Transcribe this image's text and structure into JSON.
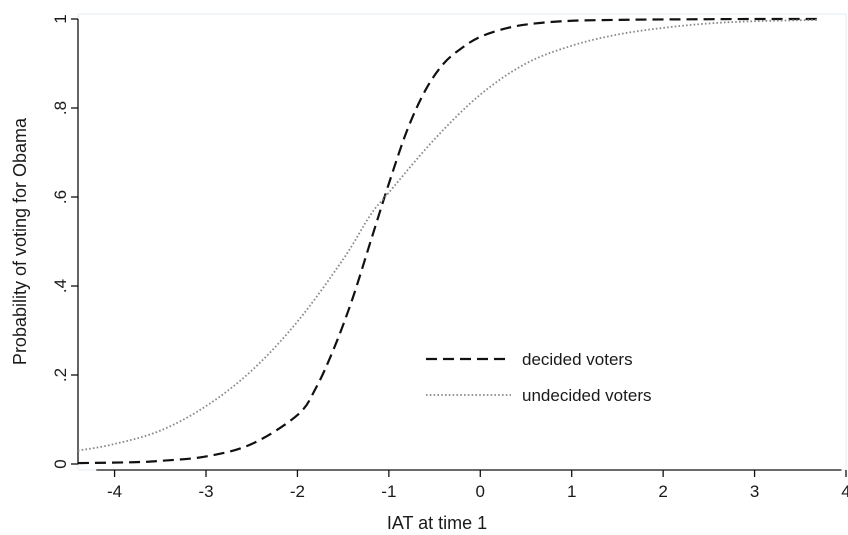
{
  "chart_data": {
    "type": "line",
    "title": "",
    "xlabel": "IAT at time 1",
    "ylabel": "Probability of voting for Obama",
    "xlim": [
      -4.4,
      4.0
    ],
    "ylim": [
      0,
      1
    ],
    "x_ticks": [
      -4,
      -3,
      -2,
      -1,
      0,
      1,
      2,
      3,
      4
    ],
    "x_tick_labels": [
      "-4",
      "-3",
      "-2",
      "-1",
      "0",
      "1",
      "2",
      "3",
      "4"
    ],
    "y_ticks": [
      0,
      0.2,
      0.4,
      0.6,
      0.8,
      1
    ],
    "y_tick_labels": [
      "0",
      ".2",
      ".4",
      ".6",
      ".8",
      "1"
    ],
    "grid": false,
    "legend_position": "lower-right",
    "series": [
      {
        "name": "decided voters",
        "style": "dashed",
        "color": "#111111",
        "points": [
          [
            -4.4,
            0.002
          ],
          [
            -3.8,
            0.004
          ],
          [
            -3.5,
            0.007
          ],
          [
            -3.0,
            0.017
          ],
          [
            -2.5,
            0.045
          ],
          [
            -2.0,
            0.11
          ],
          [
            -1.8,
            0.17
          ],
          [
            -1.6,
            0.26
          ],
          [
            -1.4,
            0.37
          ],
          [
            -1.2,
            0.5
          ],
          [
            -1.0,
            0.63
          ],
          [
            -0.8,
            0.75
          ],
          [
            -0.6,
            0.84
          ],
          [
            -0.4,
            0.9
          ],
          [
            -0.2,
            0.935
          ],
          [
            0.0,
            0.96
          ],
          [
            0.3,
            0.98
          ],
          [
            0.6,
            0.99
          ],
          [
            1.0,
            0.996
          ],
          [
            1.5,
            0.998
          ],
          [
            2.0,
            0.999
          ],
          [
            3.0,
            1.0
          ],
          [
            3.7,
            1.0
          ]
        ]
      },
      {
        "name": "undecided voters",
        "style": "dotted",
        "color": "#888888",
        "points": [
          [
            -4.4,
            0.03
          ],
          [
            -4.0,
            0.045
          ],
          [
            -3.5,
            0.075
          ],
          [
            -3.0,
            0.13
          ],
          [
            -2.5,
            0.21
          ],
          [
            -2.0,
            0.32
          ],
          [
            -1.5,
            0.46
          ],
          [
            -1.2,
            0.56
          ],
          [
            -1.0,
            0.61
          ],
          [
            -0.5,
            0.73
          ],
          [
            0.0,
            0.83
          ],
          [
            0.5,
            0.9
          ],
          [
            1.0,
            0.94
          ],
          [
            1.5,
            0.965
          ],
          [
            2.0,
            0.98
          ],
          [
            2.5,
            0.99
          ],
          [
            3.0,
            0.995
          ],
          [
            3.7,
            0.998
          ]
        ]
      }
    ]
  }
}
